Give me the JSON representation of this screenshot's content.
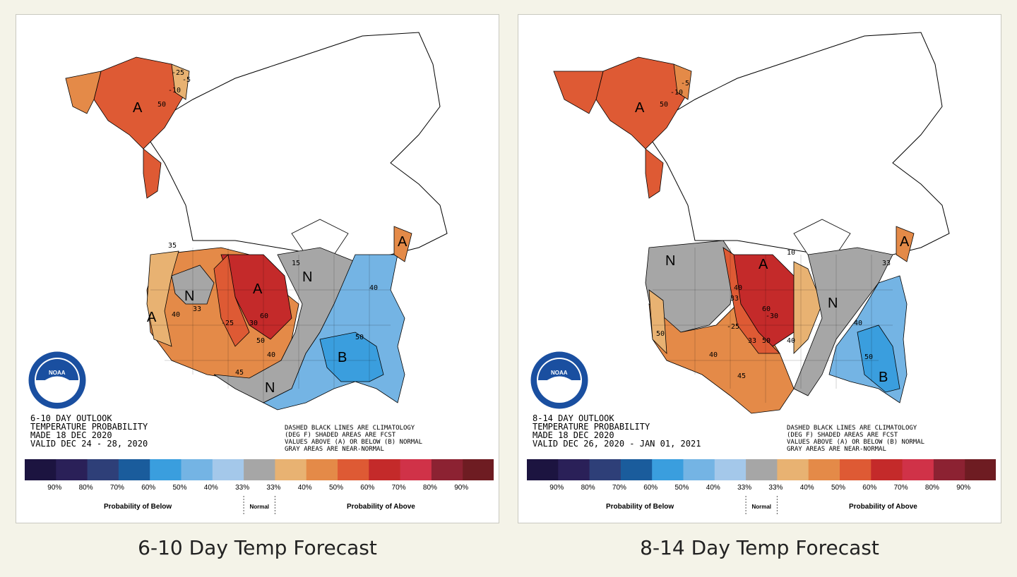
{
  "colors": {
    "background": "#f4f3e8",
    "near_normal": "#a6a6a6",
    "below": [
      "#1c1440",
      "#2a2058",
      "#2e3f78",
      "#1a5c9c",
      "#3a9ede",
      "#74b4e4",
      "#a4c8ea"
    ],
    "above": [
      "#e8b272",
      "#e48a48",
      "#de5a34",
      "#c42a2a",
      "#d03248",
      "#8c2232",
      "#6e1c22"
    ],
    "water": "#ffffff",
    "land_outline": "#000000"
  },
  "legend": {
    "below_pct": [
      "90%",
      "80%",
      "70%",
      "60%",
      "50%",
      "40%",
      "33%"
    ],
    "above_pct": [
      "33%",
      "40%",
      "50%",
      "60%",
      "70%",
      "80%",
      "90%"
    ],
    "below_label": "Probability of Below",
    "normal_label": "Normal",
    "above_label": "Probability of Above"
  },
  "maps": [
    {
      "caption": "6-10 Day Temp Forecast",
      "outlook_title": "6-10 DAY OUTLOOK",
      "outlook_type": "TEMPERATURE PROBABILITY",
      "made": "MADE   18 DEC 2020",
      "valid": "VALID   DEC 24 - 28, 2020",
      "note_lines": [
        "DASHED BLACK LINES ARE CLIMATOLOGY",
        "(DEG F) SHADED AREAS ARE FCST",
        "VALUES ABOVE (A) OR BELOW (B) NORMAL",
        "GRAY AREAS ARE NEAR-NORMAL"
      ],
      "markers": [
        "A",
        "A",
        "A",
        "A",
        "N",
        "N",
        "N",
        "B"
      ],
      "contours": [
        "-25",
        "-10",
        "50",
        "35",
        "40",
        "33",
        "45",
        "60",
        "50",
        "40",
        "-25",
        "15",
        "40",
        "50",
        "30",
        "-5"
      ]
    },
    {
      "caption": "8-14 Day Temp Forecast",
      "outlook_title": "8-14 DAY OUTLOOK",
      "outlook_type": "TEMPERATURE PROBABILITY",
      "made": "MADE   18 DEC 2020",
      "valid": "VALID   DEC 26, 2020 - JAN 01, 2021",
      "note_lines": [
        "DASHED BLACK LINES ARE CLIMATOLOGY",
        "(DEG F) SHADED AREAS ARE FCST",
        "VALUES ABOVE (A) OR BELOW (B) NORMAL",
        "GRAY AREAS ARE NEAR-NORMAL"
      ],
      "markers": [
        "A",
        "A",
        "A",
        "N",
        "N",
        "B"
      ],
      "contours": [
        "-5",
        "-10",
        "50",
        "40",
        "33",
        "60",
        "50",
        "40",
        "33",
        "-25",
        "50",
        "40",
        "45",
        "33",
        "40",
        "50",
        "10",
        "-30"
      ]
    }
  ]
}
